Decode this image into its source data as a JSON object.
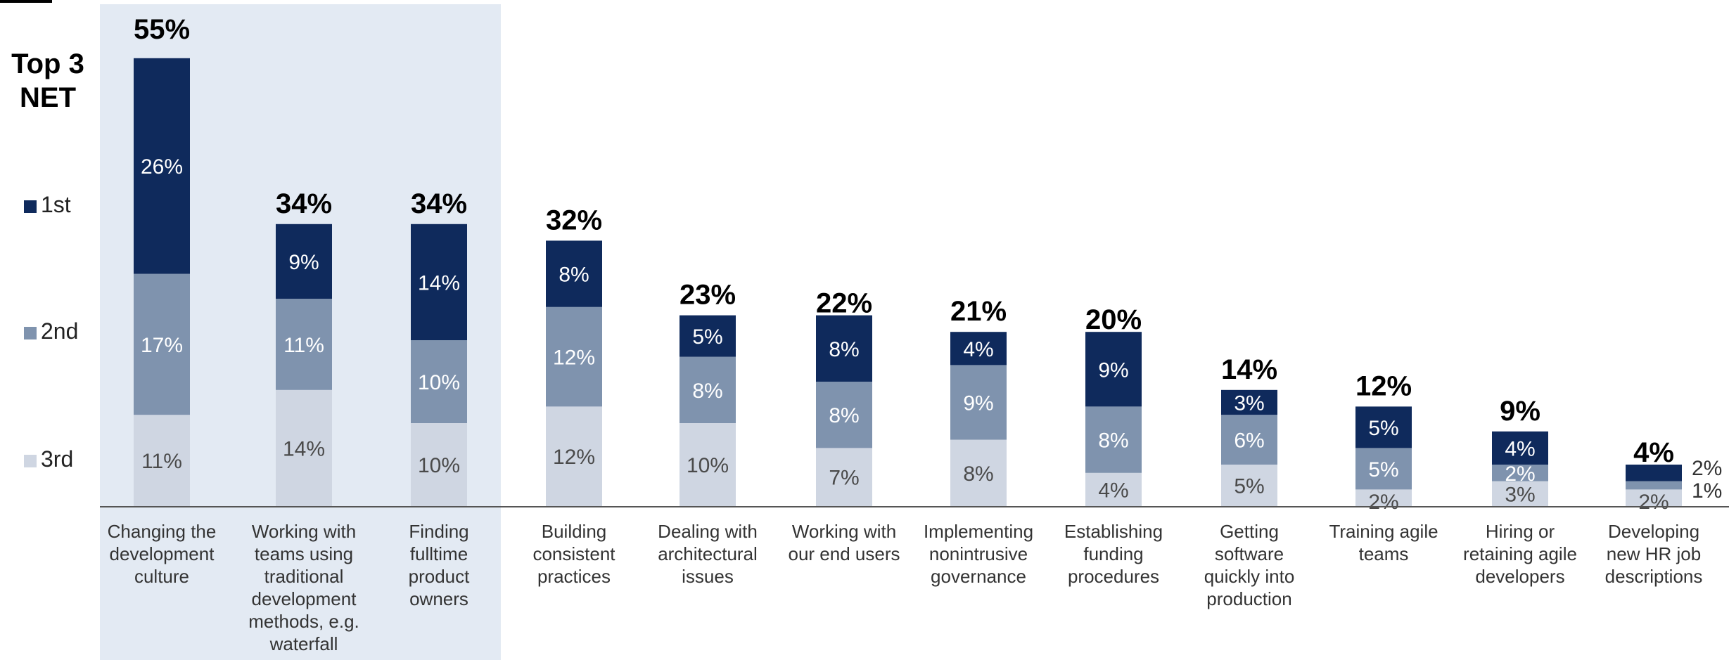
{
  "colors": {
    "first": "#0f2a5c",
    "second": "#7f93ae",
    "third": "#cfd6e2",
    "highlight": "#e3eaf3",
    "axis": "#555555",
    "label_dark_bg": "#ffffff",
    "label_light_bg": "#4a4a4a"
  },
  "chart_data": {
    "type": "bar",
    "stacked": true,
    "title": "",
    "xlabel": "",
    "ylabel": "",
    "ylim": [
      0,
      60
    ],
    "legend_title": "Top 3 NET",
    "legend_position": "left",
    "highlight_categories": [
      0,
      1,
      2
    ],
    "categories": [
      "Changing the development culture",
      "Working with teams using traditional development methods, e.g. waterfall",
      "Finding fulltime product owners",
      "Building consistent practices",
      "Dealing with architectural issues",
      "Working with our end users",
      "Implementing nonintrusive governance",
      "Establishing funding procedures",
      "Getting software quickly into production",
      "Training agile teams",
      "Hiring or retaining agile developers",
      "Developing new HR job descriptions"
    ],
    "category_lines": [
      [
        "Changing the",
        "development",
        "culture"
      ],
      [
        "Working with",
        "teams using",
        "traditional",
        "development",
        "methods, e.g.",
        "waterfall"
      ],
      [
        "Finding",
        "fulltime",
        "product",
        "owners"
      ],
      [
        "Building",
        "consistent",
        "practices"
      ],
      [
        "Dealing with",
        "architectural",
        "issues"
      ],
      [
        "Working with",
        "our end users"
      ],
      [
        "Implementing",
        "nonintrusive",
        "governance"
      ],
      [
        "Establishing",
        "funding",
        "procedures"
      ],
      [
        "Getting",
        "software",
        "quickly into",
        "production"
      ],
      [
        "Training agile",
        "teams"
      ],
      [
        "Hiring or",
        "retaining agile",
        "developers"
      ],
      [
        "Developing",
        "new HR job",
        "descriptions"
      ]
    ],
    "totals": [
      55,
      34,
      34,
      32,
      23,
      22,
      21,
      20,
      14,
      12,
      9,
      4
    ],
    "total_labels": [
      "55%",
      "34%",
      "34%",
      "32%",
      "23%",
      "22%",
      "21%",
      "20%",
      "14%",
      "12%",
      "9%",
      "4%"
    ],
    "series": [
      {
        "name": "3rd",
        "values": [
          11,
          14,
          10,
          12,
          10,
          7,
          8,
          4,
          5,
          2,
          3,
          2
        ],
        "labels": [
          "11%",
          "14%",
          "10%",
          "12%",
          "10%",
          "7%",
          "8%",
          "4%",
          "5%",
          "2%",
          "3%",
          "2%"
        ]
      },
      {
        "name": "2nd",
        "values": [
          17,
          11,
          10,
          12,
          8,
          8,
          9,
          8,
          6,
          5,
          2,
          1
        ],
        "labels": [
          "17%",
          "11%",
          "10%",
          "12%",
          "8%",
          "8%",
          "9%",
          "8%",
          "6%",
          "5%",
          "2%",
          "1%"
        ]
      },
      {
        "name": "1st",
        "values": [
          26,
          9,
          14,
          8,
          5,
          8,
          4,
          9,
          3,
          5,
          4,
          2
        ],
        "labels": [
          "26%",
          "9%",
          "14%",
          "8%",
          "5%",
          "8%",
          "4%",
          "9%",
          "3%",
          "5%",
          "4%",
          "2%"
        ]
      }
    ]
  }
}
